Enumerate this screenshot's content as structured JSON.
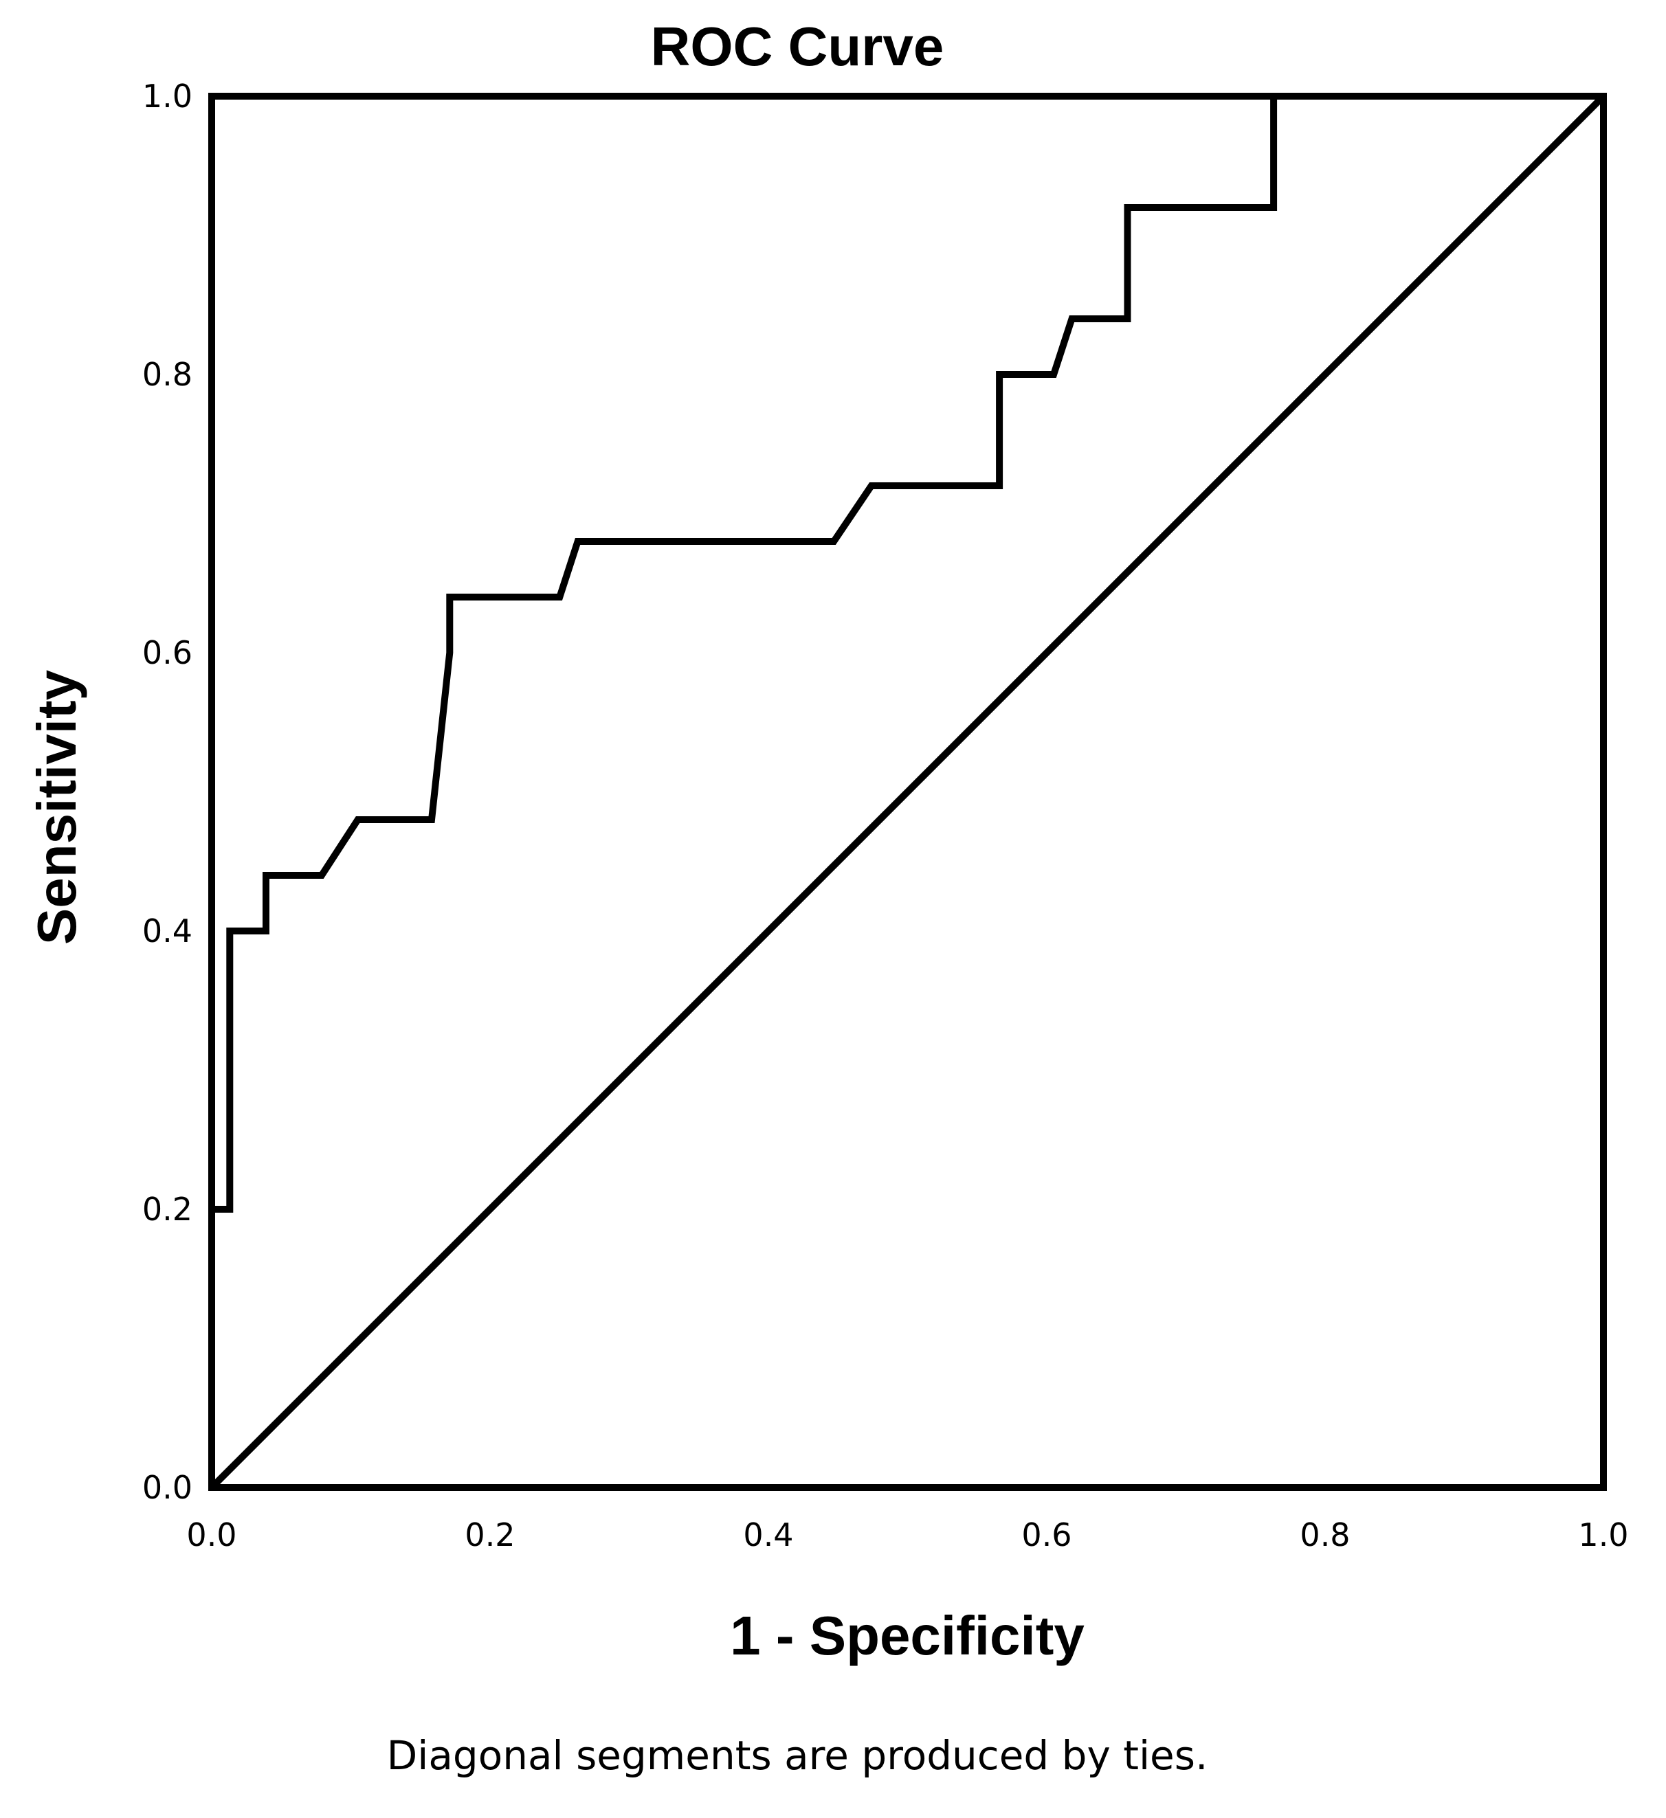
{
  "chart_data": {
    "type": "line",
    "title": "ROC Curve",
    "xlabel": "1 - Specificity",
    "ylabel": "Sensitivity",
    "xlim": [
      0,
      1
    ],
    "ylim": [
      0,
      1
    ],
    "x_ticks": [
      "0.0",
      "0.2",
      "0.4",
      "0.6",
      "0.8",
      "1.0"
    ],
    "y_ticks": [
      "0.0",
      "0.2",
      "0.4",
      "0.6",
      "0.8",
      "1.0"
    ],
    "grid": false,
    "footnote": "Diagonal segments are produced by ties.",
    "line_color": "#000000",
    "series": [
      {
        "x": [
          0.0,
          0.0,
          0.013,
          0.013,
          0.039,
          0.039,
          0.079,
          0.105,
          0.158,
          0.171,
          0.171,
          0.25,
          0.263,
          0.447,
          0.474,
          0.566,
          0.566,
          0.605,
          0.618,
          0.658,
          0.658,
          0.763,
          0.763,
          1.0
        ],
        "y": [
          0.0,
          0.2,
          0.2,
          0.4,
          0.4,
          0.44,
          0.44,
          0.48,
          0.48,
          0.6,
          0.64,
          0.64,
          0.68,
          0.68,
          0.72,
          0.72,
          0.8,
          0.8,
          0.84,
          0.84,
          0.92,
          0.92,
          1.0,
          1.0
        ]
      },
      {
        "x": [
          0.0,
          1.0
        ],
        "y": [
          0.0,
          1.0
        ]
      }
    ]
  }
}
